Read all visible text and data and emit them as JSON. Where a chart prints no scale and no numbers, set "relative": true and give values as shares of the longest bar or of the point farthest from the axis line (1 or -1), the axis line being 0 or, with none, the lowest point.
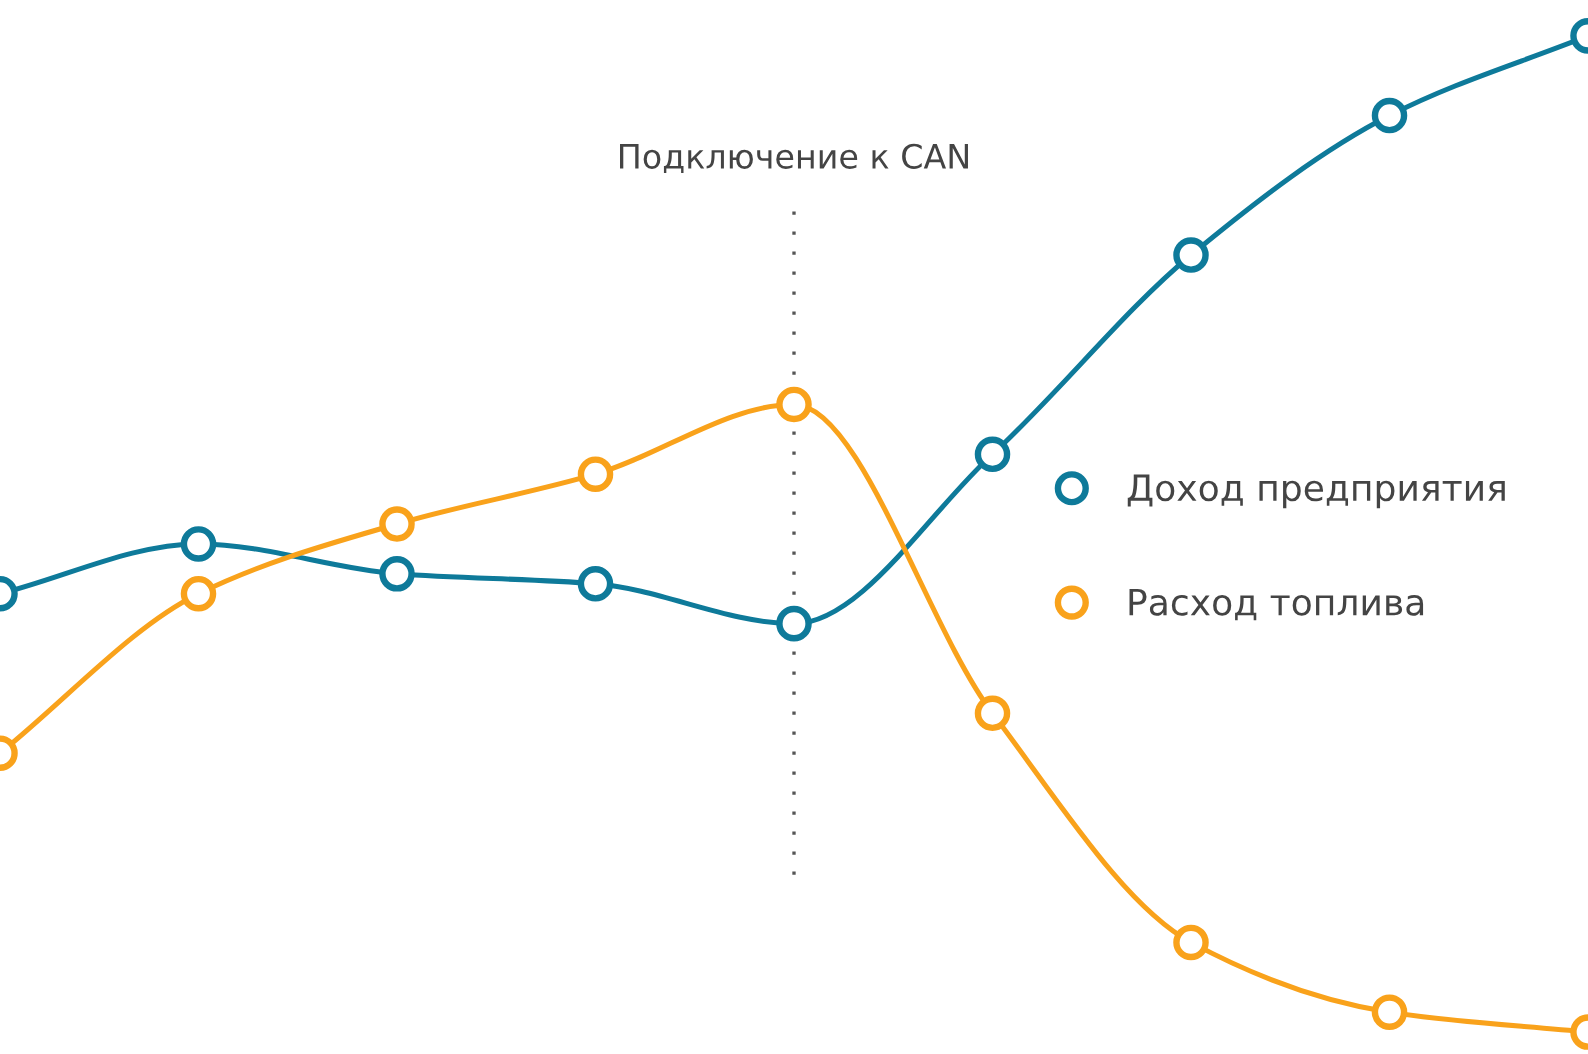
{
  "chart_data": {
    "type": "line",
    "relative": true,
    "categories": [
      null,
      null,
      null,
      null,
      null,
      null,
      null,
      null,
      null
    ],
    "series": [
      {
        "name": "Доход предприятия",
        "color": "#0e7a9a",
        "values": [
          0.44,
          0.49,
          0.46,
          0.45,
          0.41,
          0.58,
          0.78,
          0.92,
          1
        ]
      },
      {
        "name": "Расход топлива",
        "color": "#f9a21b",
        "values": [
          0.28,
          0.44,
          0.51,
          0.56,
          0.63,
          0.32,
          0.09,
          0.02,
          0
        ]
      }
    ],
    "annotations": [
      "Подключение к CAN"
    ],
    "marker": "circle",
    "line_style": "solid",
    "legend": "right"
  }
}
